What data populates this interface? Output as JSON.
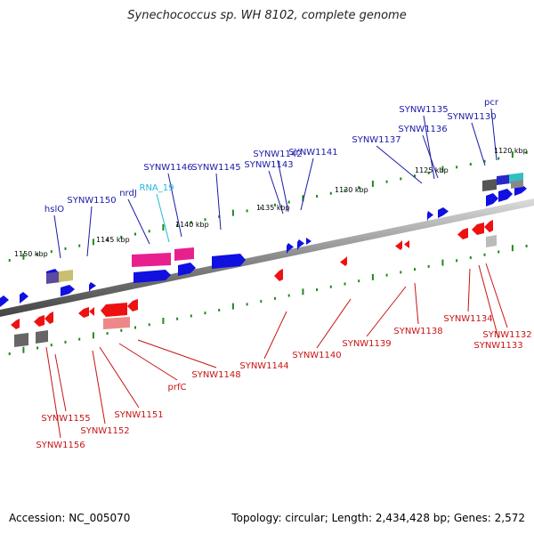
{
  "title": "Synechococcus sp. WH 8102, complete genome",
  "footer": {
    "accession": "Accession: NC_005070",
    "summary": "Topology: circular; Length: 2,434,428 bp; Genes: 2,572"
  },
  "colors": {
    "forward_gene": "#1010e0",
    "reverse_gene": "#ee1111",
    "forward_label": "#1a1aa8",
    "reverse_label": "#c81414",
    "rna": "#22b8d8",
    "tick": "#1f8a1f",
    "backbone": "#8a8a8a"
  },
  "scale_labels": [
    "1150 kbp",
    "1145 kbp",
    "1140 kbp",
    "1135 kbp",
    "1130 kbp",
    "1125 kbp",
    "1120 kbp"
  ],
  "forward_labels": [
    "hslO",
    "SYNW1150",
    "nrdJ",
    "RNA_19",
    "SYNW1146",
    "SYNW1145",
    "SYNW1143",
    "SYNW1142",
    "SYNW1141",
    "SYNW1137",
    "SYNW1136",
    "SYNW1135",
    "SYNW1130",
    "pcr"
  ],
  "reverse_labels": [
    "SYNW1156",
    "SYNW1155",
    "SYNW1152",
    "SYNW1151",
    "prfC",
    "SYNW1148",
    "SYNW1144",
    "SYNW1140",
    "SYNW1139",
    "SYNW1138",
    "SYNW1134",
    "SYNW1133",
    "SYNW1132"
  ]
}
